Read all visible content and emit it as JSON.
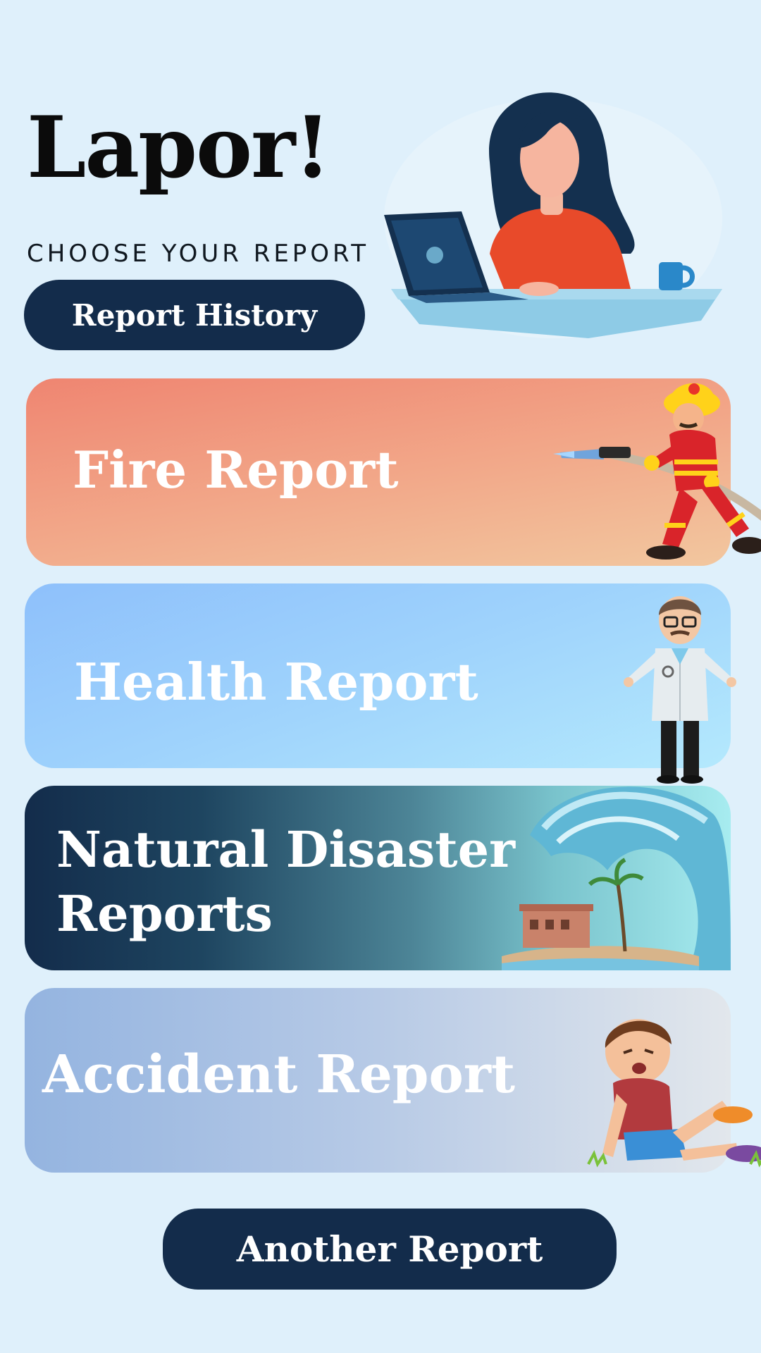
{
  "header": {
    "app_title": "Lapor!",
    "subtitle": "CHOOSE YOUR REPORT",
    "history_button": "Report History"
  },
  "cards": [
    {
      "label": "Fire Report",
      "icon": "firefighter-icon"
    },
    {
      "label": "Health Report",
      "icon": "doctor-icon"
    },
    {
      "label_line1": "Natural Disaster",
      "label_line2": "Reports",
      "icon": "tsunami-icon"
    },
    {
      "label": "Accident Report",
      "icon": "injured-boy-icon"
    }
  ],
  "footer": {
    "another_button": "Another Report"
  },
  "colors": {
    "background": "#dff0fb",
    "primary_button": "#132c4b",
    "fire": "#ef8571",
    "health": "#9fd3fc",
    "nature": "#132c4b",
    "accident": "#94b4e0"
  }
}
